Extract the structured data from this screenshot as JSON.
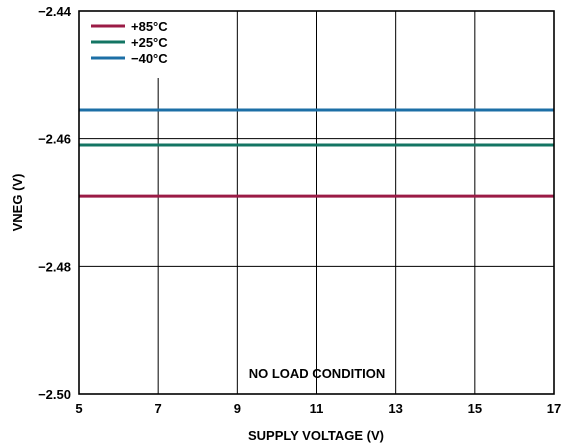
{
  "chart_data": {
    "type": "line",
    "xlabel": "SUPPLY VOLTAGE (V)",
    "ylabel": "VNEG (V)",
    "xlim": [
      5,
      17
    ],
    "ylim": [
      -2.5,
      -2.44
    ],
    "x_ticks": [
      5,
      7,
      9,
      11,
      13,
      15,
      17
    ],
    "y_ticks": [
      -2.44,
      -2.46,
      -2.48,
      -2.5
    ],
    "y_tick_labels": [
      "−2.44",
      "−2.46",
      "−2.48",
      "−2.50"
    ],
    "grid": true,
    "legend_position": "top-left",
    "annotation": "NO LOAD CONDITION",
    "series": [
      {
        "name": "+85°C",
        "color": "#9b1b46",
        "x": [
          5,
          17
        ],
        "y": [
          -2.469,
          -2.469
        ]
      },
      {
        "name": "+25°C",
        "color": "#137563",
        "x": [
          5,
          17
        ],
        "y": [
          -2.461,
          -2.461
        ]
      },
      {
        "name": "−40°C",
        "color": "#1c6fa6",
        "x": [
          5,
          17
        ],
        "y": [
          -2.4555,
          -2.4555
        ]
      }
    ]
  }
}
